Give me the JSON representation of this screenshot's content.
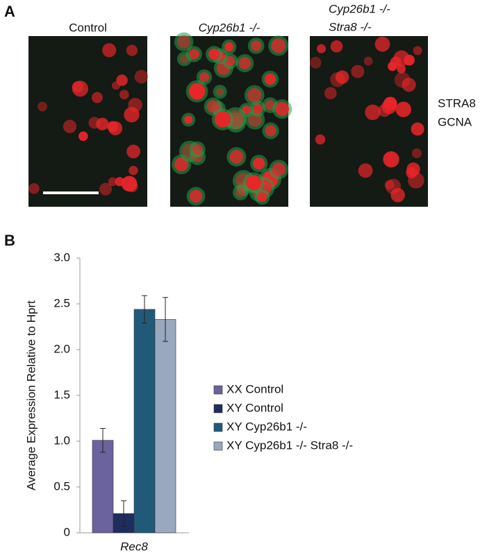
{
  "panel_a": {
    "label": "A",
    "images": [
      {
        "title_lines": [
          "Control"
        ],
        "italic": false
      },
      {
        "title_lines": [
          "Cyp26b1 -/-"
        ],
        "italic": true
      },
      {
        "title_lines": [
          "Cyp26b1 -/-",
          "Stra8 -/-"
        ],
        "italic": true
      }
    ],
    "legend": [
      {
        "text": "STRA8",
        "color": "#1fa34a"
      },
      {
        "text": "GCNA",
        "color": "#e8262a"
      }
    ]
  },
  "panel_b": {
    "label": "B"
  },
  "chart_data": {
    "type": "bar",
    "y_label": "Average Expression Relative to Hprt",
    "categories": [
      "Rec8"
    ],
    "series": [
      {
        "name": "XX Control",
        "color": "#6b639e",
        "values": [
          1.01
        ],
        "errors": [
          0.13
        ]
      },
      {
        "name": "XY Control",
        "color": "#1f2d5c",
        "values": [
          0.21
        ],
        "errors": [
          0.14
        ]
      },
      {
        "name": "XY Cyp26b1 -/-",
        "color": "#215a79",
        "values": [
          2.44
        ],
        "errors": [
          0.15
        ]
      },
      {
        "name": "XY Cyp26b1 -/- Stra8 -/-",
        "color": "#9aa8bf",
        "values": [
          2.33
        ],
        "errors": [
          0.24
        ]
      }
    ],
    "ylim": [
      0,
      3
    ],
    "yticks": [
      0,
      0.5,
      {
        "value": 1,
        "label": "1.0"
      },
      1.5,
      {
        "value": 2,
        "label": "2.0"
      },
      2.5,
      {
        "value": 3,
        "label": "3.0"
      }
    ]
  }
}
